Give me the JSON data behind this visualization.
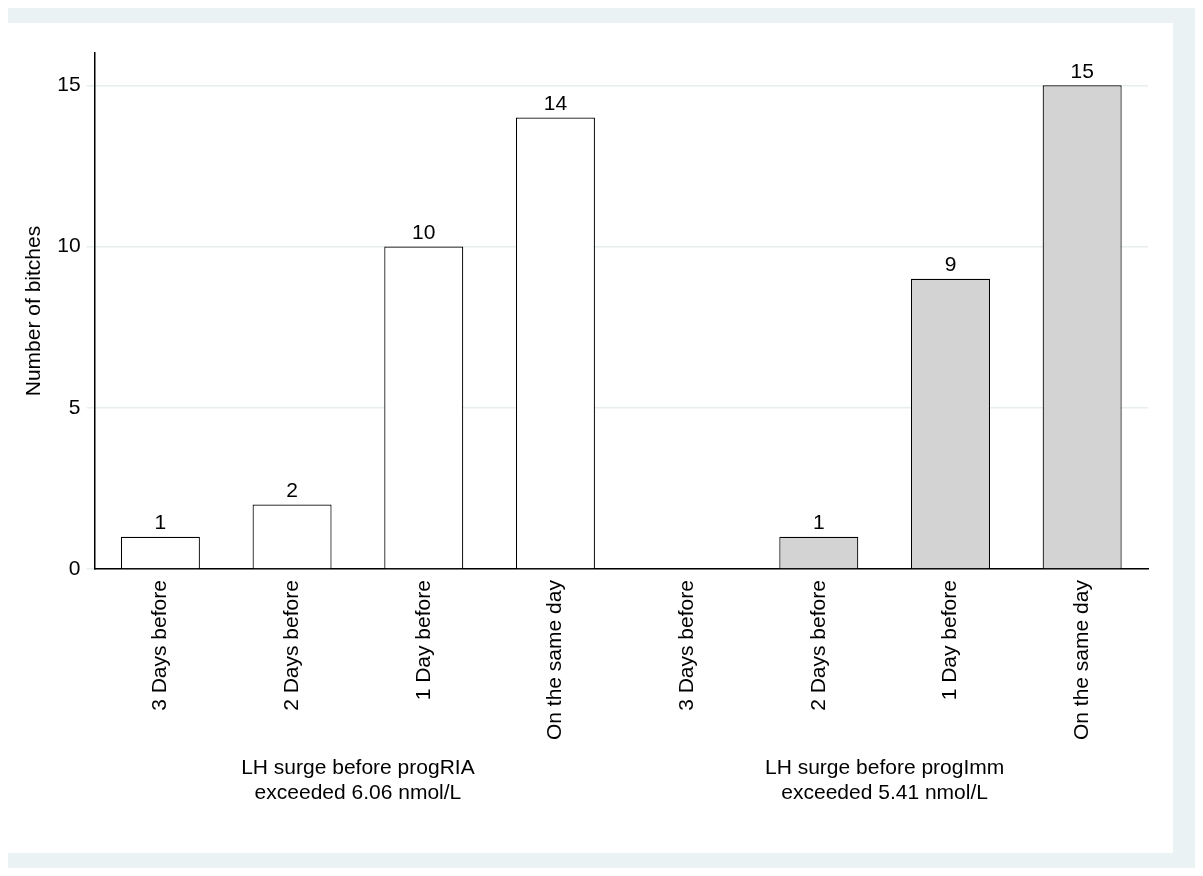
{
  "chart_data": {
    "type": "bar",
    "ylabel": "Number of bitches",
    "categories": [
      "3 Days before",
      "2 Days before",
      "1 Day before",
      "On the same day",
      "3 Days before",
      "2 Days before",
      "1 Day before",
      "On the same day"
    ],
    "series": [
      {
        "color": "#ffffff",
        "values": [
          1,
          2,
          10,
          14,
          null,
          null,
          null,
          null
        ]
      },
      {
        "color": "#d3d3d3",
        "values": [
          null,
          null,
          null,
          null,
          null,
          1,
          9,
          15
        ]
      }
    ],
    "annotations": [
      "LH surge before progRIA\nexceeded 6.06 nmol/L",
      "LH surge before progImm\nexceeded 5.41 nmol/L"
    ],
    "ylim": [
      0,
      16
    ],
    "yticks": [
      0,
      5,
      10,
      15
    ],
    "grid": "y",
    "data_labels": true
  }
}
